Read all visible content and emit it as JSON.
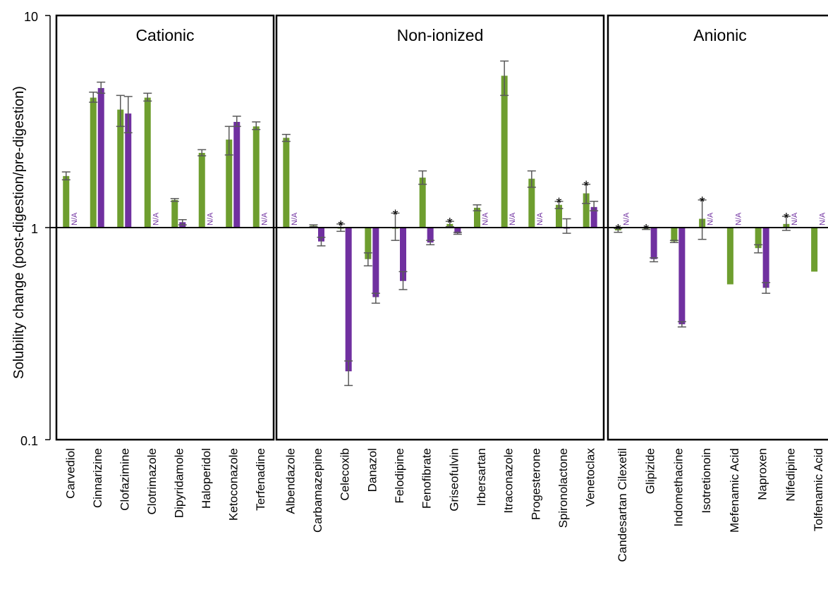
{
  "colors": {
    "series_a": "#6e9e2f",
    "series_b": "#7030a0",
    "error_bar": "#595959",
    "frame": "#000000",
    "na_text": "#7030a0"
  },
  "chart_data": {
    "type": "bar",
    "ylabel": "Solubility change (post-digestion/pre-digestion)",
    "yscale": "log",
    "ylim": [
      0.1,
      10
    ],
    "yticks": [
      "0.1",
      "1",
      "10"
    ],
    "reference_line": 1,
    "na_label": "N/A",
    "star_label": "*",
    "groups": [
      {
        "name": "Cationic",
        "items": [
          {
            "category": "Carvediol",
            "a": 1.75,
            "a_err": [
              1.68,
              1.83
            ],
            "b": null,
            "b_err": null,
            "star": false
          },
          {
            "category": "Cinnarizine",
            "a": 4.1,
            "a_err": [
              3.9,
              4.35
            ],
            "b": 4.55,
            "b_err": [
              4.3,
              4.85
            ],
            "star": false
          },
          {
            "category": "Clofazimine",
            "a": 3.6,
            "a_err": [
              3.0,
              4.2
            ],
            "b": 3.45,
            "b_err": [
              2.8,
              4.15
            ],
            "star": false
          },
          {
            "category": "Clotrimazole",
            "a": 4.1,
            "a_err": [
              3.95,
              4.3
            ],
            "b": null,
            "b_err": null,
            "star": false
          },
          {
            "category": "Dipyridamole",
            "a": 1.35,
            "a_err": [
              1.33,
              1.37
            ],
            "b": 1.06,
            "b_err": [
              1.03,
              1.09
            ],
            "star": false
          },
          {
            "category": "Haloperidol",
            "a": 2.25,
            "a_err": [
              2.18,
              2.33
            ],
            "b": null,
            "b_err": null,
            "star": false
          },
          {
            "category": "Ketoconazole",
            "a": 2.6,
            "a_err": [
              2.2,
              3.0
            ],
            "b": 3.15,
            "b_err": [
              3.0,
              3.35
            ],
            "star": false
          },
          {
            "category": "Terfenadine",
            "a": 3.0,
            "a_err": [
              2.9,
              3.15
            ],
            "b": null,
            "b_err": null,
            "star": false
          }
        ]
      },
      {
        "name": "Non-ionized",
        "items": [
          {
            "category": "Albendazole",
            "a": 2.65,
            "a_err": [
              2.55,
              2.75
            ],
            "b": null,
            "b_err": null,
            "star": false
          },
          {
            "category": "Carbamazepine",
            "a": 1.02,
            "a_err": [
              1.01,
              1.03
            ],
            "b": 0.86,
            "b_err": [
              0.82,
              0.9
            ],
            "star": false
          },
          {
            "category": "Celecoxib",
            "a": 1.0,
            "a_err": [
              0.96,
              1.04
            ],
            "b": 0.21,
            "b_err": [
              0.18,
              0.235
            ],
            "star": true
          },
          {
            "category": "Danazol",
            "a": 0.71,
            "a_err": [
              0.66,
              0.76
            ],
            "b": 0.47,
            "b_err": [
              0.44,
              0.49
            ],
            "star": false
          },
          {
            "category": "Felodipine",
            "a": 1.0,
            "a_err": [
              0.87,
              1.17
            ],
            "b": 0.56,
            "b_err": [
              0.51,
              0.62
            ],
            "star": true
          },
          {
            "category": "Fenofibrate",
            "a": 1.72,
            "a_err": [
              1.6,
              1.85
            ],
            "b": 0.85,
            "b_err": [
              0.83,
              0.87
            ],
            "star": false
          },
          {
            "category": "Griseofulvin",
            "a": 1.04,
            "a_err": [
              1.01,
              1.07
            ],
            "b": 0.94,
            "b_err": [
              0.93,
              0.95
            ],
            "star": true
          },
          {
            "category": "Irbersartan",
            "a": 1.24,
            "a_err": [
              1.2,
              1.28
            ],
            "b": null,
            "b_err": null,
            "star": false
          },
          {
            "category": "Itraconazole",
            "a": 5.2,
            "a_err": [
              4.2,
              6.1
            ],
            "b": null,
            "b_err": null,
            "star": false
          },
          {
            "category": "Progesterone",
            "a": 1.7,
            "a_err": [
              1.55,
              1.85
            ],
            "b": null,
            "b_err": null,
            "star": false
          },
          {
            "category": "Spironolactone",
            "a": 1.28,
            "a_err": [
              1.23,
              1.33
            ],
            "b": 1.0,
            "b_err": [
              0.94,
              1.1
            ],
            "star": true
          },
          {
            "category": "Venetoclax",
            "a": 1.45,
            "a_err": [
              1.3,
              1.6
            ],
            "b": 1.25,
            "b_err": [
              1.2,
              1.33
            ],
            "star": true
          }
        ]
      },
      {
        "name": "Anionic",
        "items": [
          {
            "category": "Candesartan Cilexetil",
            "a": 0.97,
            "a_err": [
              0.95,
              0.99
            ],
            "b": null,
            "b_err": null,
            "star": true
          },
          {
            "category": "Glipizide",
            "a": 0.99,
            "a_err": [
              0.98,
              1.0
            ],
            "b": 0.71,
            "b_err": [
              0.69,
              0.72
            ],
            "star": true
          },
          {
            "category": "Indomethacine",
            "a": 0.86,
            "a_err": [
              0.85,
              0.87
            ],
            "b": 0.35,
            "b_err": [
              0.34,
              0.36
            ],
            "star": false
          },
          {
            "category": "Isotretionoin",
            "a": 1.1,
            "a_err": [
              0.88,
              1.35
            ],
            "b": null,
            "b_err": null,
            "star": true
          },
          {
            "category": "Mefenamic Acid",
            "a": 0.54,
            "a_err": [
              0.54,
              0.54
            ],
            "b": null,
            "b_err": null,
            "star": false
          },
          {
            "category": "Naproxen",
            "a": 0.8,
            "a_err": [
              0.76,
              0.83
            ],
            "b": 0.52,
            "b_err": [
              0.49,
              0.55
            ],
            "star": false
          },
          {
            "category": "Nifedipine",
            "a": 1.04,
            "a_err": [
              0.97,
              1.13
            ],
            "b": null,
            "b_err": null,
            "star": true
          },
          {
            "category": "Tolfenamic Acid",
            "a": 0.62,
            "a_err": [
              0.62,
              0.62
            ],
            "b": null,
            "b_err": null,
            "star": false
          }
        ]
      }
    ]
  }
}
